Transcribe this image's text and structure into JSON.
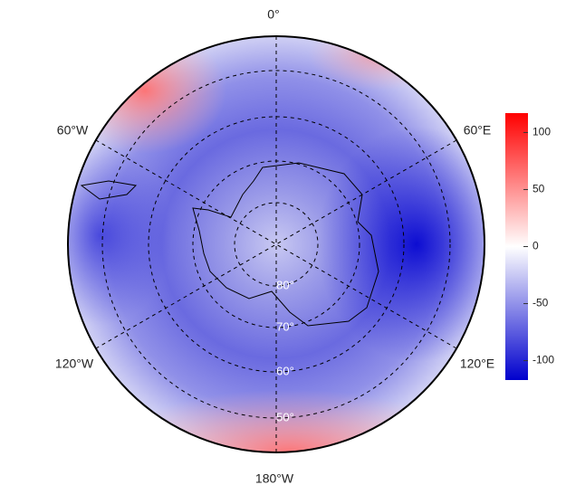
{
  "map": {
    "longitude_labels": [
      "0°",
      "60°E",
      "120°E",
      "180°W",
      "120°W",
      "60°W"
    ],
    "latitude_labels": [
      "80°",
      "70°",
      "60°",
      "50°"
    ]
  },
  "colorbar": {
    "lim": [
      -117,
      117
    ],
    "ticks": [
      -100,
      -50,
      0,
      50,
      100
    ],
    "colors": [
      "#0000cd",
      "#ffffff",
      "#ff0000"
    ]
  }
}
